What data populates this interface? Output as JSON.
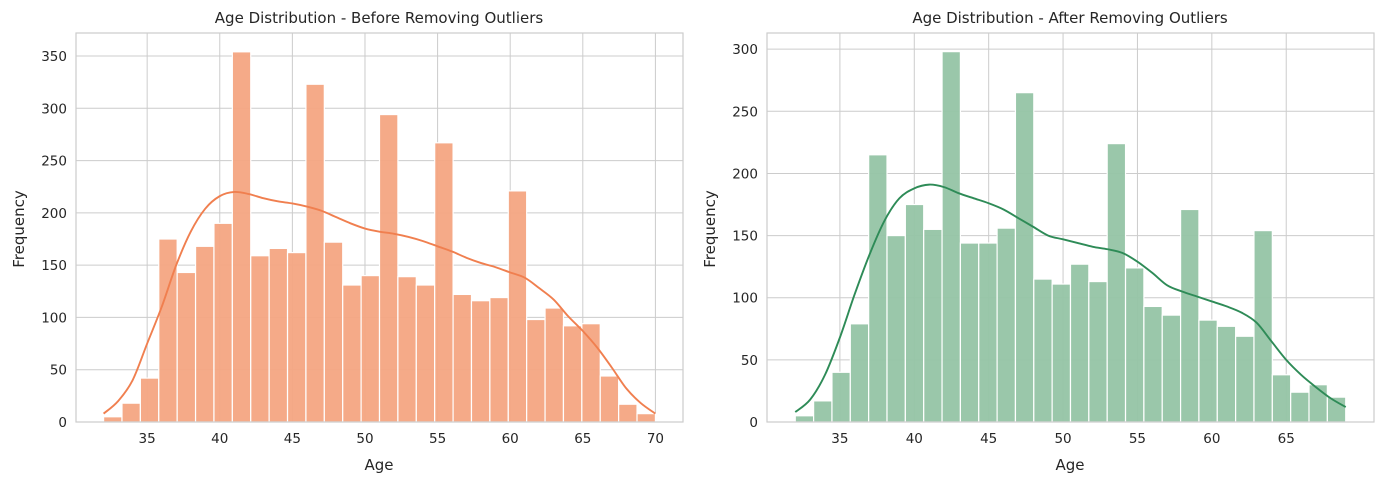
{
  "chart_data": [
    {
      "type": "histogram",
      "title": "Age Distribution - Before Removing Outliers",
      "xlabel": "Age",
      "ylabel": "Frequency",
      "xlim": [
        30.1,
        71.9
      ],
      "ylim": [
        0,
        372
      ],
      "xticks": [
        35,
        40,
        45,
        50,
        55,
        60,
        65,
        70
      ],
      "yticks": [
        0,
        50,
        100,
        150,
        200,
        250,
        300,
        350
      ],
      "grid": true,
      "bar_color": "#f4a582",
      "kde_color": "#f07f4f",
      "bins": {
        "start": 32,
        "width": 1.2667,
        "values": [
          5,
          18,
          42,
          175,
          143,
          168,
          190,
          354,
          159,
          166,
          162,
          323,
          172,
          131,
          140,
          294,
          139,
          131,
          267,
          122,
          116,
          119,
          221,
          98,
          109,
          92,
          94,
          44,
          17,
          8
        ]
      },
      "kde": {
        "x": [
          32,
          33,
          34,
          35,
          36,
          37,
          38,
          39,
          40,
          41,
          42,
          43,
          44,
          45,
          46,
          47,
          48,
          49,
          50,
          51,
          52,
          53,
          54,
          55,
          56,
          57,
          58,
          59,
          60,
          61,
          62,
          63,
          64,
          65,
          66,
          67,
          68,
          69,
          70
        ],
        "y": [
          8,
          20,
          40,
          75,
          110,
          150,
          182,
          204,
          216,
          220,
          218,
          214,
          211,
          209,
          206,
          202,
          196,
          190,
          185,
          182,
          180,
          177,
          173,
          168,
          163,
          157,
          152,
          148,
          143,
          138,
          128,
          117,
          101,
          87,
          71,
          52,
          32,
          18,
          8
        ]
      }
    },
    {
      "type": "histogram",
      "title": "Age Distribution - After Removing Outliers",
      "xlabel": "Age",
      "ylabel": "Frequency",
      "xlim": [
        30.1,
        70.9
      ],
      "ylim": [
        0,
        313
      ],
      "xticks": [
        35,
        40,
        45,
        50,
        55,
        60,
        65
      ],
      "yticks": [
        0,
        50,
        100,
        150,
        200,
        250,
        300
      ],
      "grid": true,
      "bar_color": "#95c4a5",
      "kde_color": "#2e8b57",
      "bins": {
        "start": 32,
        "width": 1.2333,
        "values": [
          5,
          17,
          40,
          79,
          215,
          150,
          175,
          155,
          298,
          144,
          144,
          156,
          265,
          115,
          111,
          127,
          113,
          224,
          124,
          93,
          86,
          171,
          82,
          77,
          69,
          154,
          38,
          24,
          30,
          20
        ]
      },
      "kde": {
        "x": [
          32,
          33,
          34,
          35,
          36,
          37,
          38,
          39,
          40,
          41,
          42,
          43,
          44,
          45,
          46,
          47,
          48,
          49,
          50,
          51,
          52,
          53,
          54,
          55,
          56,
          57,
          58,
          59,
          60,
          61,
          62,
          63,
          64,
          65,
          66,
          67,
          68,
          69
        ],
        "y": [
          8,
          18,
          38,
          68,
          103,
          135,
          162,
          180,
          188,
          191,
          189,
          184,
          180,
          176,
          171,
          164,
          157,
          150,
          147,
          144,
          141,
          139,
          136,
          129,
          120,
          110,
          105,
          101,
          97,
          93,
          88,
          80,
          65,
          50,
          38,
          28,
          19,
          12
        ]
      }
    }
  ]
}
